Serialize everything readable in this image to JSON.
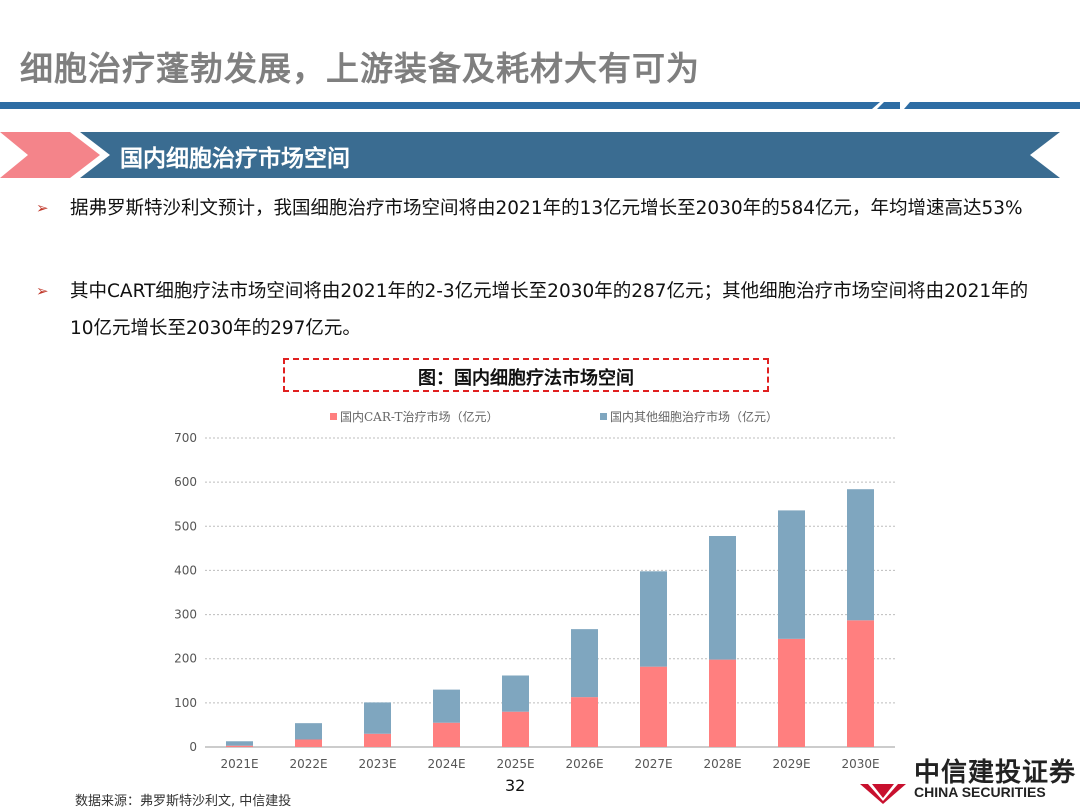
{
  "page": {
    "title": "细胞治疗蓬勃发展，上游装备及耗材大有可为",
    "section": "国内细胞治疗市场空间",
    "bullets": [
      "据弗罗斯特沙利文预计，我国细胞治疗市场空间将由2021年的13亿元增长至2030年的584亿元，年均增速高达53%",
      "其中CART细胞疗法市场空间将由2021年的2-3亿元增长至2030年的287亿元；其他细胞治疗市场空间将由2021年的10亿元增长至2030年的297亿元。"
    ],
    "figure_caption": "图：国内细胞疗法市场空间",
    "source": "数据来源：弗罗斯特沙利文, 中信建投",
    "page_number": "32",
    "logo": {
      "cn": "中信建投证券",
      "en": "CHINA SECURITIES"
    },
    "colors": {
      "banner": "#3a6c91",
      "banner_accent": "#f4848a",
      "rule_blue": "#2e6da4",
      "bullet_marker": "#c0392b"
    }
  },
  "chart_data": {
    "type": "bar",
    "stacked": true,
    "categories": [
      "2021E",
      "2022E",
      "2023E",
      "2024E",
      "2025E",
      "2026E",
      "2027E",
      "2028E",
      "2029E",
      "2030E"
    ],
    "series": [
      {
        "name": "国内CAR-T治疗市场（亿元）",
        "color": "#ff7f7f",
        "values": [
          3,
          17,
          30,
          55,
          80,
          113,
          182,
          198,
          245,
          287
        ]
      },
      {
        "name": "国内其他细胞治疗市场（亿元）",
        "color": "#7fa6bf",
        "values": [
          10,
          37,
          71,
          75,
          82,
          154,
          216,
          280,
          291,
          297
        ]
      }
    ],
    "ylim": [
      0,
      700
    ],
    "yticks": [
      0,
      100,
      200,
      300,
      400,
      500,
      600,
      700
    ],
    "grid": true,
    "legend": "top"
  }
}
